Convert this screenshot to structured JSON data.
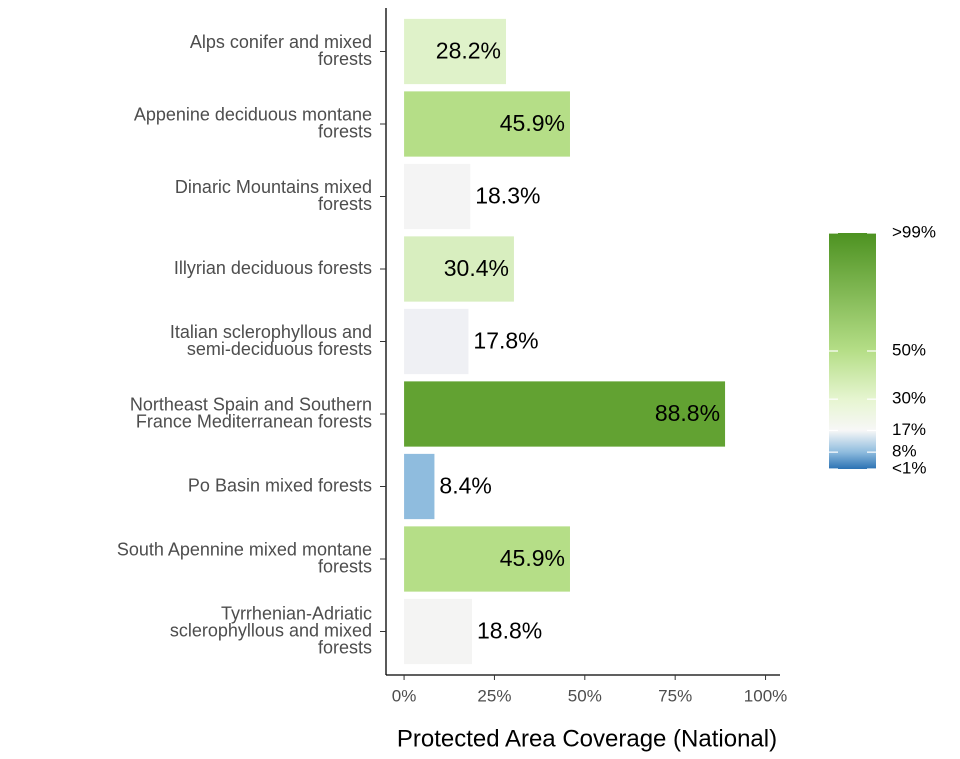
{
  "chart_data": {
    "type": "bar",
    "orientation": "horizontal",
    "x_label": "Protected Area Coverage (National)",
    "categories": [
      "Alps conifer and mixed\nforests",
      "Appenine deciduous montane\nforests",
      "Dinaric Mountains mixed\nforests",
      "Illyrian deciduous forests",
      "Italian sclerophyllous and\nsemi-deciduous forests",
      "Northeast Spain and Southern\nFrance Mediterranean forests",
      "Po Basin mixed forests",
      "South Apennine mixed montane\nforests",
      "Tyrrhenian-Adriatic\nsclerophyllous and mixed\nforests"
    ],
    "values": [
      28.2,
      45.9,
      18.3,
      30.4,
      17.8,
      88.8,
      8.4,
      45.9,
      18.8
    ],
    "value_labels": [
      "28.2%",
      "45.9%",
      "18.3%",
      "30.4%",
      "17.8%",
      "88.8%",
      "8.4%",
      "45.9%",
      "18.8%"
    ],
    "colors": [
      "#dff2c9",
      "#b5de87",
      "#f4f4f4",
      "#d8eebf",
      "#eff0f4",
      "#62a232",
      "#8fbcde",
      "#b5de87",
      "#f4f4f3"
    ],
    "xlim": [
      -5,
      104
    ],
    "xticks": [
      {
        "value": 0,
        "label": "0%"
      },
      {
        "value": 25,
        "label": "25%"
      },
      {
        "value": 50,
        "label": "50%"
      },
      {
        "value": 75,
        "label": "75%"
      },
      {
        "value": 100,
        "label": "100%"
      }
    ],
    "grid": false,
    "legend": {
      "position": "right",
      "lim": [
        1,
        99
      ],
      "ticks": [
        {
          "value": 99,
          "label": ">99%"
        },
        {
          "value": 50,
          "label": "50%"
        },
        {
          "value": 30,
          "label": "30%"
        },
        {
          "value": 17,
          "label": "17%"
        },
        {
          "value": 8,
          "label": "8%"
        },
        {
          "value": 1,
          "label": "<1%"
        }
      ],
      "stops": [
        {
          "value": 1,
          "color": "#2b72b3"
        },
        {
          "value": 8,
          "color": "#8fbcde"
        },
        {
          "value": 17,
          "color": "#f7f7f7"
        },
        {
          "value": 30,
          "color": "#e6f5d0"
        },
        {
          "value": 50,
          "color": "#b5de87"
        },
        {
          "value": 99,
          "color": "#4d9221"
        }
      ]
    }
  }
}
